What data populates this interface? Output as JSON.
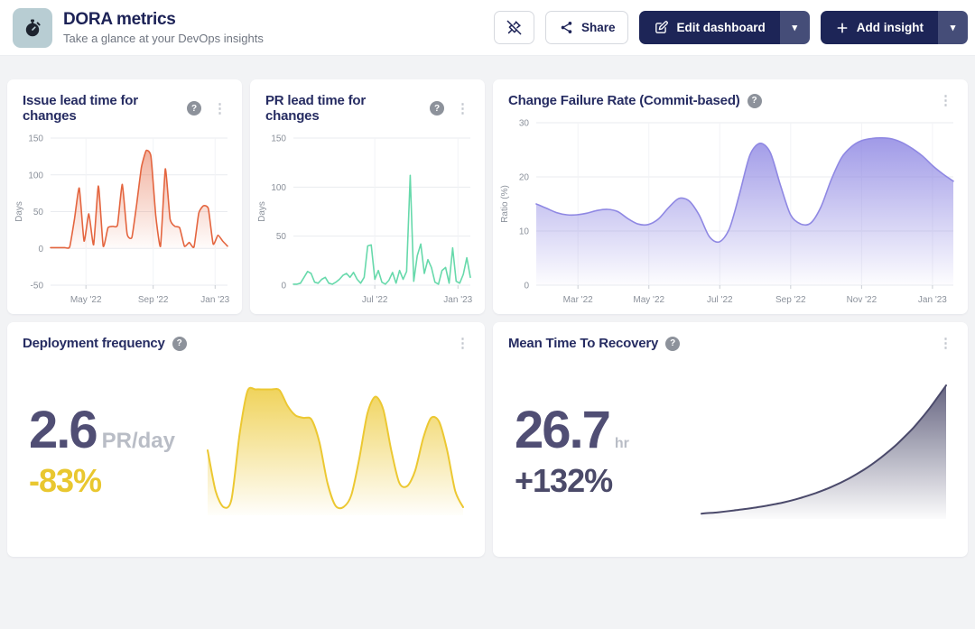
{
  "header": {
    "title": "DORA metrics",
    "subtitle": "Take a glance at your DevOps insights",
    "buttons": {
      "share_label": "Share",
      "edit_label": "Edit dashboard",
      "add_label": "Add insight"
    }
  },
  "icons": {
    "help": "?",
    "kebab": "⋮",
    "caret": "▾"
  },
  "colors": {
    "navy_button": "#1d2557",
    "navy_button_caret": "#454d78",
    "orange": "#e4653f",
    "green": "#67d9ab",
    "purple": "#8f88e3",
    "yellow": "#ecc832",
    "slate": "#4b4a6b",
    "stat_number": "#504e74",
    "delta_yellow": "#e9c72f",
    "delta_dark": "#4b4a69"
  },
  "chart_data": [
    {
      "type": "area",
      "title": "Issue lead time for changes",
      "ylabel": "Days",
      "ylim": [
        -50,
        150
      ],
      "yticks": [
        -50,
        0,
        50,
        100,
        150
      ],
      "xticks": [
        "May '22",
        "Sep '22",
        "Jan '23"
      ],
      "xtick_pos": [
        0.2,
        0.58,
        0.93
      ],
      "values": [
        1,
        1,
        1,
        1,
        2,
        40,
        82,
        10,
        47,
        5,
        85,
        3,
        28,
        30,
        32,
        87,
        20,
        15,
        60,
        110,
        133,
        125,
        45,
        3,
        108,
        40,
        30,
        28,
        3,
        8,
        2,
        48,
        58,
        54,
        6,
        18,
        10,
        3
      ],
      "color": "#e4653f",
      "fill_opacity": 0.5,
      "smooth": 0.5,
      "baseline": 0,
      "axes": true,
      "grid": true,
      "legend": false
    },
    {
      "type": "line",
      "title": "PR lead time for changes",
      "ylabel": "Days",
      "ylim": [
        0,
        150
      ],
      "yticks": [
        0,
        50,
        100,
        150
      ],
      "xticks": [
        "Jul '22",
        "Jan '23"
      ],
      "xtick_pos": [
        0.46,
        0.93
      ],
      "values": [
        1,
        1,
        2,
        8,
        14,
        12,
        3,
        2,
        6,
        8,
        2,
        1,
        3,
        6,
        10,
        12,
        8,
        13,
        6,
        2,
        8,
        40,
        41,
        6,
        15,
        3,
        1,
        5,
        13,
        2,
        15,
        6,
        14,
        112,
        4,
        30,
        42,
        12,
        26,
        18,
        3,
        1,
        15,
        18,
        2,
        38,
        4,
        2,
        11,
        28,
        8
      ],
      "color": "#67d9ab",
      "fill_opacity": 0,
      "smooth": 0,
      "baseline": 0,
      "axes": true,
      "grid": true,
      "legend": false
    },
    {
      "type": "area",
      "title": "Change Failure Rate (Commit-based)",
      "ylabel": "Ratio (%)",
      "ylim": [
        0,
        30
      ],
      "yticks": [
        0,
        10,
        20,
        30
      ],
      "xticks": [
        "Mar '22",
        "May '22",
        "Jul '22",
        "Sep '22",
        "Nov '22",
        "Jan '23"
      ],
      "xtick_pos": [
        0.1,
        0.27,
        0.44,
        0.61,
        0.78,
        0.95
      ],
      "values": [
        15,
        14.2,
        13.4,
        13,
        13,
        13.3,
        13.8,
        14,
        13.6,
        12.3,
        11.3,
        11.2,
        12.2,
        14.3,
        16,
        15.6,
        13,
        9,
        8,
        10.5,
        17,
        24,
        26.2,
        24.5,
        18.5,
        13,
        11.3,
        11.5,
        14.5,
        19.5,
        23.5,
        25.6,
        26.7,
        27.1,
        27.2,
        27,
        26.3,
        25.2,
        23.8,
        22,
        20.5,
        19.2
      ],
      "color": "#8f88e3",
      "fill_opacity": 0.85,
      "smooth": 0.9,
      "baseline": 0,
      "axes": true,
      "grid": true,
      "legend": false
    },
    {
      "type": "area",
      "title": "Deployment frequency",
      "value": "2.6",
      "unit": "PR/day",
      "delta": "-83%",
      "ylim": [
        0,
        16
      ],
      "values": [
        8,
        3,
        1,
        2,
        10,
        15.3,
        15.5,
        15.5,
        15.5,
        15.4,
        13.5,
        12.3,
        12,
        11.8,
        9,
        4,
        1.2,
        1,
        2.5,
        7,
        12.5,
        14.6,
        13,
        8,
        4,
        3.6,
        5.5,
        9.5,
        12,
        11.5,
        8,
        3,
        1
      ],
      "color": "#ecc832",
      "fill_opacity": 0.8,
      "smooth": 0.85,
      "baseline": 0,
      "axes": false,
      "grid": false,
      "legend": false
    },
    {
      "type": "area",
      "title": "Mean Time To Recovery",
      "value": "26.7",
      "unit": "hr",
      "delta": "+132%",
      "ylim": [
        0,
        26
      ],
      "values": [
        1,
        1.25,
        1.6,
        2,
        2.5,
        3.1,
        3.9,
        4.9,
        6.1,
        7.6,
        9.4,
        11.6,
        14.2,
        17.3,
        21,
        25.3
      ],
      "color": "#4b4a6b",
      "fill_opacity": 0.85,
      "smooth": 0.5,
      "baseline": 0,
      "axes": false,
      "grid": false,
      "legend": false
    }
  ]
}
